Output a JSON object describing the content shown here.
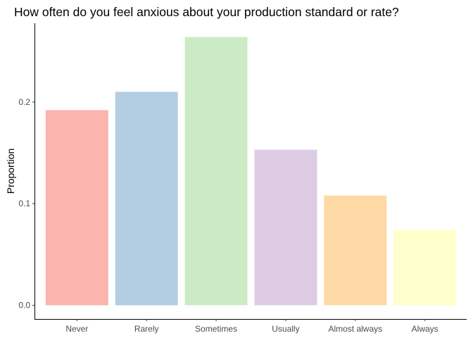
{
  "chart_data": {
    "type": "bar",
    "title": "How often do you feel anxious about your production standard or rate?",
    "xlabel": "",
    "ylabel": "Proportion",
    "categories": [
      "Never",
      "Rarely",
      "Sometimes",
      "Usually",
      "Almost always",
      "Always"
    ],
    "values": [
      0.192,
      0.21,
      0.264,
      0.153,
      0.108,
      0.074
    ],
    "colors": [
      "#FBB4AE",
      "#B3CDE3",
      "#CCEBC5",
      "#DECBE4",
      "#FED9A6",
      "#FFFFCC"
    ],
    "yticks": [
      0.0,
      0.1,
      0.2
    ],
    "ytick_labels": [
      "0.0",
      "0.1",
      "0.2"
    ],
    "ylim": [
      -0.0135,
      0.2775
    ],
    "grid": false,
    "legend": "none"
  }
}
